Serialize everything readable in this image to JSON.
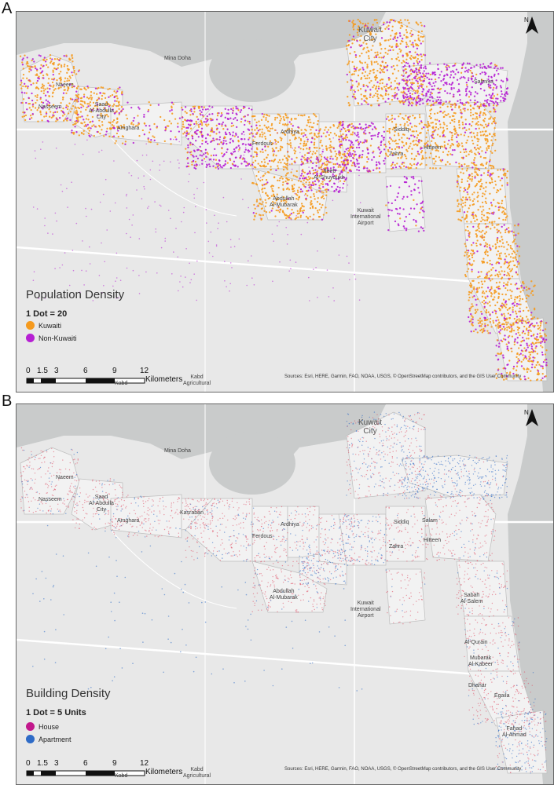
{
  "panels": [
    {
      "letter": "A",
      "legend_title": "Population Density",
      "dot_scale": "1 Dot = 20",
      "categories": [
        {
          "label": "Kuwaiti",
          "color": "#F59A1E"
        },
        {
          "label": "Non-Kuwaiti",
          "color": "#B61FD3"
        }
      ],
      "places": [
        "Kuwait\nCity",
        "Mina Doha",
        "Siddiq",
        "Hitteen",
        "Zahra",
        "Abdullah\nAl-Mubarak",
        "Kuwait\nInternational\nAirport",
        "Amghara",
        "Ferdous",
        "Ardhiya",
        "Salmiya",
        "Jleeb\nAl-Shuyoukh",
        "Naeem",
        "Nasseem",
        "Saad\nAl-Abdulla\nCity",
        "Kabd\nAgricultural",
        "Kabd"
      ]
    },
    {
      "letter": "B",
      "legend_title": "Building Density",
      "dot_scale": "1 Dot = 5 Units",
      "categories": [
        {
          "label": "House",
          "color": "#C2188C"
        },
        {
          "label": "Apartment",
          "color": "#2E6BC7"
        }
      ],
      "places": [
        "Kuwait\nCity",
        "Mina Doha",
        "Siddiq",
        "Salam",
        "Hitteen",
        "Zahra",
        "Abdullah\nAl-Mubarak",
        "Kuwait\nInternational\nAirport",
        "Amghara",
        "Kasraban",
        "Ferdous",
        "Ardhiya",
        "Naeem",
        "Nasseem",
        "Saad\nAl-Abdulla\nCity",
        "Sabah\nAl-Salem",
        "Al-Qurain",
        "Mubarak\nAl-Kabeer",
        "Egaila",
        "Dhahar",
        "Fahad\nAl-Ahmad",
        "Kabd\nAgricultural",
        "Kabd"
      ]
    }
  ],
  "scale": {
    "ticks": [
      "0",
      "1.5",
      "3",
      "6",
      "9",
      "12"
    ],
    "unit": "Kilometers"
  },
  "north_label": "N",
  "sources": "Sources: Esri, HERE, Garmin, FAO, NOAA, USGS, © OpenStreetMap contributors, and the GIS User Community"
}
